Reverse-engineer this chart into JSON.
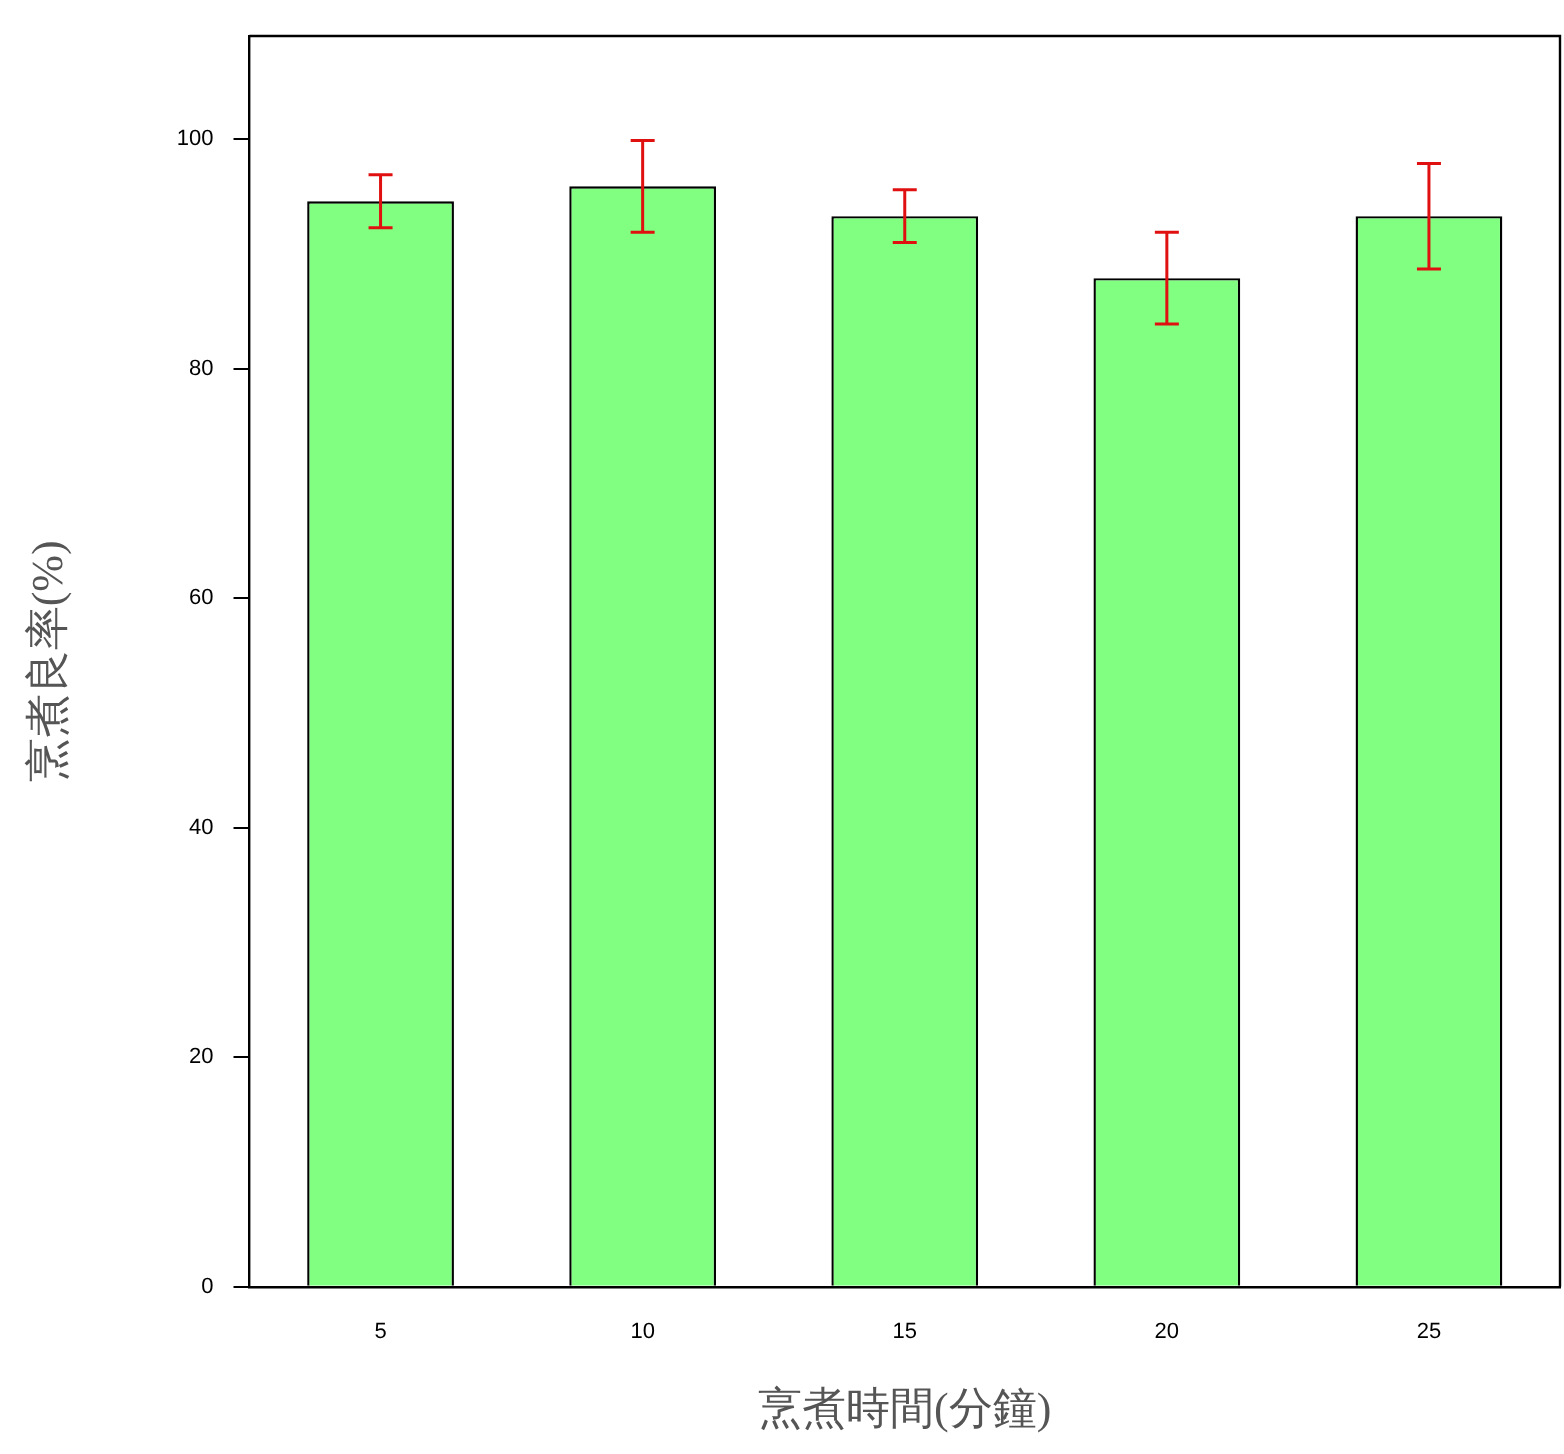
{
  "chart_data": {
    "type": "bar",
    "xlabel": "烹煮時間(分鐘)",
    "ylabel": "烹煮良率(%)",
    "categories": [
      "5",
      "10",
      "15",
      "20",
      "25"
    ],
    "values": [
      94.6,
      95.9,
      93.3,
      87.9,
      93.3
    ],
    "errors": [
      2.3,
      4,
      2.3,
      4,
      4.6
    ],
    "color": "#80ff80",
    "ylim": [
      0,
      109
    ],
    "yticks": [
      0,
      20,
      40,
      60,
      80,
      100
    ],
    "grid": false,
    "legend": false
  }
}
